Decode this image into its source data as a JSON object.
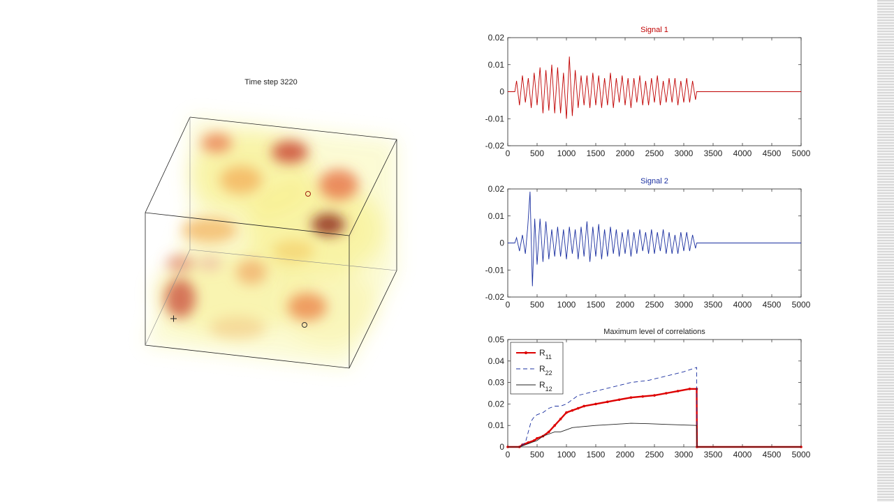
{
  "volume": {
    "title": "Time step 3220"
  },
  "chart_data": [
    {
      "type": "line",
      "title": "Signal 1",
      "title_color": "#c00000",
      "xlim": [
        0,
        5000
      ],
      "ylim": [
        -0.02,
        0.02
      ],
      "xticks": [
        0,
        500,
        1000,
        1500,
        2000,
        2500,
        3000,
        3500,
        4000,
        4500,
        5000
      ],
      "yticks": [
        -0.02,
        -0.01,
        0,
        0.01,
        0.02
      ],
      "ytick_labels": [
        "-0.02",
        "-0.01",
        "0",
        "0.01",
        "0.02"
      ],
      "grid": false,
      "series": [
        {
          "color": "#c00000",
          "x": [
            0,
            120,
            150,
            200,
            250,
            300,
            350,
            400,
            450,
            500,
            550,
            600,
            650,
            700,
            750,
            800,
            850,
            900,
            950,
            1000,
            1050,
            1100,
            1150,
            1200,
            1250,
            1300,
            1350,
            1400,
            1450,
            1500,
            1550,
            1600,
            1650,
            1700,
            1750,
            1800,
            1850,
            1900,
            1950,
            2000,
            2050,
            2100,
            2150,
            2200,
            2250,
            2300,
            2350,
            2400,
            2450,
            2500,
            2550,
            2600,
            2650,
            2700,
            2750,
            2800,
            2850,
            2900,
            2950,
            3000,
            3050,
            3100,
            3150,
            3200,
            3220,
            5000
          ],
          "y": [
            0,
            0,
            0.004,
            -0.005,
            0.006,
            -0.004,
            0.005,
            -0.006,
            0.007,
            -0.005,
            0.009,
            -0.008,
            0.008,
            -0.007,
            0.01,
            -0.008,
            0.009,
            -0.008,
            0.007,
            -0.01,
            0.013,
            -0.009,
            0.008,
            -0.006,
            0.006,
            -0.005,
            0.006,
            -0.006,
            0.007,
            -0.005,
            0.006,
            -0.006,
            0.005,
            -0.005,
            0.007,
            -0.006,
            0.005,
            -0.004,
            0.006,
            -0.005,
            0.005,
            -0.006,
            0.005,
            -0.004,
            0.006,
            -0.005,
            0.004,
            -0.005,
            0.005,
            -0.004,
            0.006,
            -0.005,
            0.004,
            -0.004,
            0.005,
            -0.004,
            0.005,
            -0.005,
            0.004,
            -0.004,
            0.005,
            -0.004,
            0.004,
            -0.003,
            0,
            0
          ]
        }
      ]
    },
    {
      "type": "line",
      "title": "Signal 2",
      "title_color": "#1a2fa0",
      "xlim": [
        0,
        5000
      ],
      "ylim": [
        -0.02,
        0.02
      ],
      "xticks": [
        0,
        500,
        1000,
        1500,
        2000,
        2500,
        3000,
        3500,
        4000,
        4500,
        5000
      ],
      "yticks": [
        -0.02,
        -0.01,
        0,
        0.01,
        0.02
      ],
      "ytick_labels": [
        "-0.02",
        "-0.01",
        "0",
        "0.01",
        "0.02"
      ],
      "grid": false,
      "series": [
        {
          "color": "#1a2fa0",
          "x": [
            0,
            120,
            150,
            200,
            250,
            300,
            340,
            380,
            420,
            460,
            500,
            550,
            600,
            650,
            700,
            750,
            800,
            850,
            900,
            950,
            1000,
            1050,
            1100,
            1150,
            1200,
            1250,
            1300,
            1350,
            1400,
            1450,
            1500,
            1550,
            1600,
            1650,
            1700,
            1750,
            1800,
            1850,
            1900,
            1950,
            2000,
            2050,
            2100,
            2150,
            2200,
            2250,
            2300,
            2350,
            2400,
            2450,
            2500,
            2550,
            2600,
            2650,
            2700,
            2750,
            2800,
            2850,
            2900,
            2950,
            3000,
            3050,
            3100,
            3150,
            3200,
            3220,
            5000
          ],
          "y": [
            0,
            0,
            0.002,
            -0.003,
            0.003,
            -0.004,
            0.006,
            0.019,
            -0.016,
            0.009,
            -0.008,
            0.009,
            -0.007,
            0.008,
            -0.006,
            0.005,
            -0.005,
            0.006,
            -0.005,
            0.005,
            -0.006,
            0.006,
            -0.004,
            0.005,
            -0.006,
            0.006,
            -0.005,
            0.008,
            -0.007,
            0.006,
            -0.005,
            0.007,
            -0.006,
            0.005,
            -0.005,
            0.006,
            -0.004,
            0.005,
            -0.005,
            0.004,
            -0.004,
            0.005,
            -0.005,
            0.004,
            -0.004,
            0.005,
            -0.003,
            0.004,
            -0.004,
            0.005,
            -0.004,
            0.004,
            -0.003,
            0.005,
            -0.004,
            0.004,
            -0.004,
            0.003,
            -0.004,
            0.004,
            -0.003,
            0.004,
            -0.003,
            0.003,
            -0.002,
            0,
            0
          ]
        }
      ]
    },
    {
      "type": "line",
      "title": "Maximum level of correlations",
      "title_color": "#222222",
      "xlim": [
        0,
        5000
      ],
      "ylim": [
        0,
        0.05
      ],
      "xticks": [
        0,
        500,
        1000,
        1500,
        2000,
        2500,
        3000,
        3500,
        4000,
        4500,
        5000
      ],
      "yticks": [
        0,
        0.01,
        0.02,
        0.03,
        0.04,
        0.05
      ],
      "ytick_labels": [
        "0",
        "0.01",
        "0.02",
        "0.03",
        "0.04",
        "0.05"
      ],
      "grid": false,
      "legend": "top-left",
      "series": [
        {
          "name": "R",
          "subscript": "11",
          "color": "#dd0000",
          "style": "solid-dots",
          "x": [
            0,
            200,
            250,
            350,
            450,
            500,
            600,
            700,
            800,
            900,
            1000,
            1100,
            1200,
            1300,
            1500,
            1700,
            1900,
            2100,
            2300,
            2500,
            2700,
            2900,
            3100,
            3220,
            3225,
            5000
          ],
          "y": [
            0,
            0,
            0.001,
            0.002,
            0.003,
            0.004,
            0.005,
            0.007,
            0.01,
            0.013,
            0.016,
            0.017,
            0.018,
            0.019,
            0.02,
            0.021,
            0.022,
            0.023,
            0.0235,
            0.024,
            0.025,
            0.026,
            0.027,
            0.027,
            0,
            0
          ]
        },
        {
          "name": "R",
          "subscript": "22",
          "color": "#1a2fa0",
          "style": "dashed",
          "x": [
            0,
            200,
            300,
            400,
            450,
            500,
            600,
            700,
            800,
            900,
            1000,
            1100,
            1200,
            1500,
            1800,
            2100,
            2400,
            2700,
            3000,
            3220,
            3225,
            5000
          ],
          "y": [
            0,
            0,
            0.002,
            0.012,
            0.014,
            0.015,
            0.016,
            0.018,
            0.019,
            0.019,
            0.02,
            0.022,
            0.024,
            0.026,
            0.028,
            0.03,
            0.031,
            0.033,
            0.035,
            0.037,
            0,
            0
          ]
        },
        {
          "name": "R",
          "subscript": "12",
          "color": "#222222",
          "style": "solid",
          "x": [
            0,
            200,
            300,
            400,
            500,
            600,
            700,
            800,
            900,
            1000,
            1100,
            1300,
            1500,
            1800,
            2100,
            2400,
            2700,
            3000,
            3220,
            3225,
            5000
          ],
          "y": [
            0,
            0,
            0.001,
            0.002,
            0.003,
            0.005,
            0.006,
            0.007,
            0.007,
            0.008,
            0.009,
            0.0095,
            0.01,
            0.0105,
            0.011,
            0.0108,
            0.0105,
            0.0102,
            0.01,
            0,
            0
          ]
        }
      ]
    }
  ]
}
